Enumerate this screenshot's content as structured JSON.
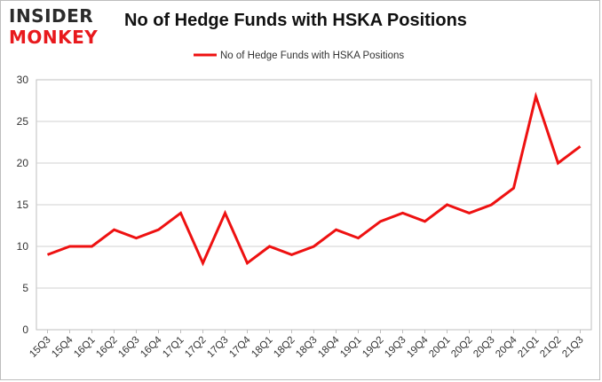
{
  "logo": {
    "line1": "INSIDER",
    "line2": "MONKEY"
  },
  "chart_data": {
    "type": "line",
    "title": "No of Hedge Funds with HSKA Positions",
    "xlabel": "",
    "ylabel": "",
    "categories": [
      "15Q3",
      "15Q4",
      "16Q1",
      "16Q2",
      "16Q3",
      "16Q4",
      "17Q1",
      "17Q2",
      "17Q3",
      "17Q4",
      "18Q1",
      "18Q2",
      "18Q3",
      "18Q4",
      "19Q1",
      "19Q2",
      "19Q3",
      "19Q4",
      "20Q1",
      "20Q2",
      "20Q3",
      "20Q4",
      "21Q1",
      "21Q2",
      "21Q3"
    ],
    "series": [
      {
        "name": "No of Hedge Funds with HSKA Positions",
        "color": "#ee1111",
        "values": [
          9,
          10,
          10,
          12,
          11,
          12,
          14,
          8,
          14,
          8,
          10,
          9,
          10,
          12,
          11,
          13,
          14,
          13,
          15,
          14,
          15,
          17,
          28,
          20,
          22
        ]
      }
    ],
    "ylim": [
      0,
      30
    ],
    "yticks": [
      0,
      5,
      10,
      15,
      20,
      25,
      30
    ],
    "grid": true,
    "legend": "top-center"
  }
}
